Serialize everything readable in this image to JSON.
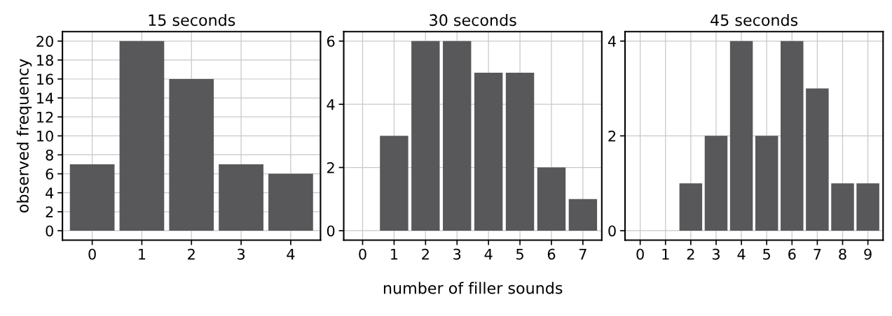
{
  "chart_data": [
    {
      "type": "bar",
      "title": "15 seconds",
      "ylabel": "observed frequency",
      "categories": [
        "0",
        "1",
        "2",
        "3",
        "4"
      ],
      "values": [
        7,
        20,
        16,
        7,
        6
      ],
      "color": "#58585a",
      "ylim": [
        -1,
        21
      ],
      "yticks": [
        0,
        2,
        4,
        6,
        8,
        10,
        12,
        14,
        16,
        18,
        20
      ],
      "grid": true
    },
    {
      "type": "bar",
      "title": "30 seconds",
      "xlabel": "number of filler sounds",
      "categories": [
        "0",
        "1",
        "2",
        "3",
        "4",
        "5",
        "6",
        "7"
      ],
      "values": [
        0,
        3,
        6,
        6,
        5,
        5,
        2,
        1
      ],
      "color": "#58585a",
      "ylim": [
        -0.3,
        6.3
      ],
      "yticks": [
        0,
        2,
        4,
        6
      ],
      "grid": true
    },
    {
      "type": "bar",
      "title": "45 seconds",
      "categories": [
        "0",
        "1",
        "2",
        "3",
        "4",
        "5",
        "6",
        "7",
        "8",
        "9"
      ],
      "values": [
        0,
        0,
        1,
        2,
        4,
        2,
        4,
        3,
        1,
        1
      ],
      "color": "#58585a",
      "ylim": [
        -0.2,
        4.2
      ],
      "yticks": [
        0,
        2,
        4
      ],
      "grid": true
    }
  ]
}
